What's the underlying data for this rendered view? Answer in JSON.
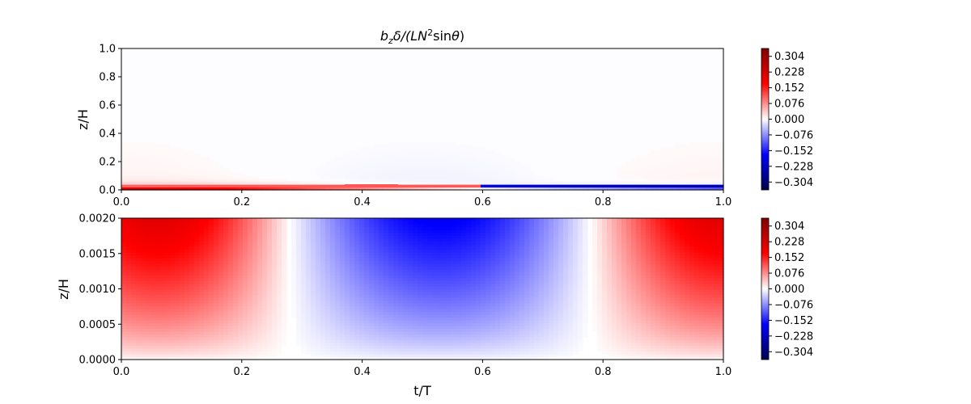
{
  "chart_data": [
    {
      "type": "heatmap",
      "title_parts": [
        "b",
        "z",
        "δ/(",
        "LN",
        "2",
        "sin",
        "θ",
        ")"
      ],
      "xlabel": "",
      "ylabel": "z/H",
      "xlim": [
        0.0,
        1.0
      ],
      "ylim": [
        0.0,
        1.0
      ],
      "x_ticks": [
        "0.0",
        "0.2",
        "0.4",
        "0.6",
        "0.8",
        "1.0"
      ],
      "y_ticks": [
        "0.0",
        "0.2",
        "0.4",
        "0.6",
        "0.8",
        "1.0"
      ],
      "description": "Thin boundary layer near z/H = 0: strong red near bottom, banded red/blue strip drifting upward across t/T; white (≈0) elsewhere",
      "colorbar": {
        "range": [
          -0.342,
          0.342
        ],
        "ticks": [
          "0.304",
          "0.228",
          "0.152",
          "0.076",
          "0.000",
          "−0.076",
          "−0.152",
          "−0.228",
          "−0.304"
        ],
        "tick_values": [
          0.304,
          0.228,
          0.152,
          0.076,
          0.0,
          -0.076,
          -0.152,
          -0.228,
          -0.304
        ],
        "colormap": "seismic"
      }
    },
    {
      "type": "heatmap",
      "title": "",
      "xlabel": "t/T",
      "ylabel": "z/H",
      "xlim": [
        0.0,
        1.0
      ],
      "ylim": [
        0.0,
        0.002
      ],
      "x_ticks": [
        "0.0",
        "0.2",
        "0.4",
        "0.6",
        "0.8",
        "1.0"
      ],
      "y_ticks": [
        "0.0000",
        "0.0005",
        "0.0010",
        "0.0015",
        "0.0020"
      ],
      "description": "Zoom of boundary layer: positive (red) for t/T < ~0.28 and > ~0.78, negative (blue) between, peak near t/T ≈ 0.53, magnitude growing with z",
      "zero_crossings_t": [
        0.28,
        0.78
      ],
      "peak_values": {
        "red_max": 0.2,
        "blue_min": -0.2
      },
      "colorbar": {
        "range": [
          -0.342,
          0.342
        ],
        "ticks": [
          "0.304",
          "0.228",
          "0.152",
          "0.076",
          "0.000",
          "−0.076",
          "−0.152",
          "−0.228",
          "−0.304"
        ],
        "tick_values": [
          0.304,
          0.228,
          0.152,
          0.076,
          0.0,
          -0.076,
          -0.152,
          -0.228,
          -0.304
        ],
        "colormap": "seismic"
      }
    }
  ],
  "colors": {
    "deep_blue": "#00004c",
    "blue": "#0000ff",
    "white": "#ffffff",
    "red": "#ff0000",
    "deep_red": "#800000"
  }
}
